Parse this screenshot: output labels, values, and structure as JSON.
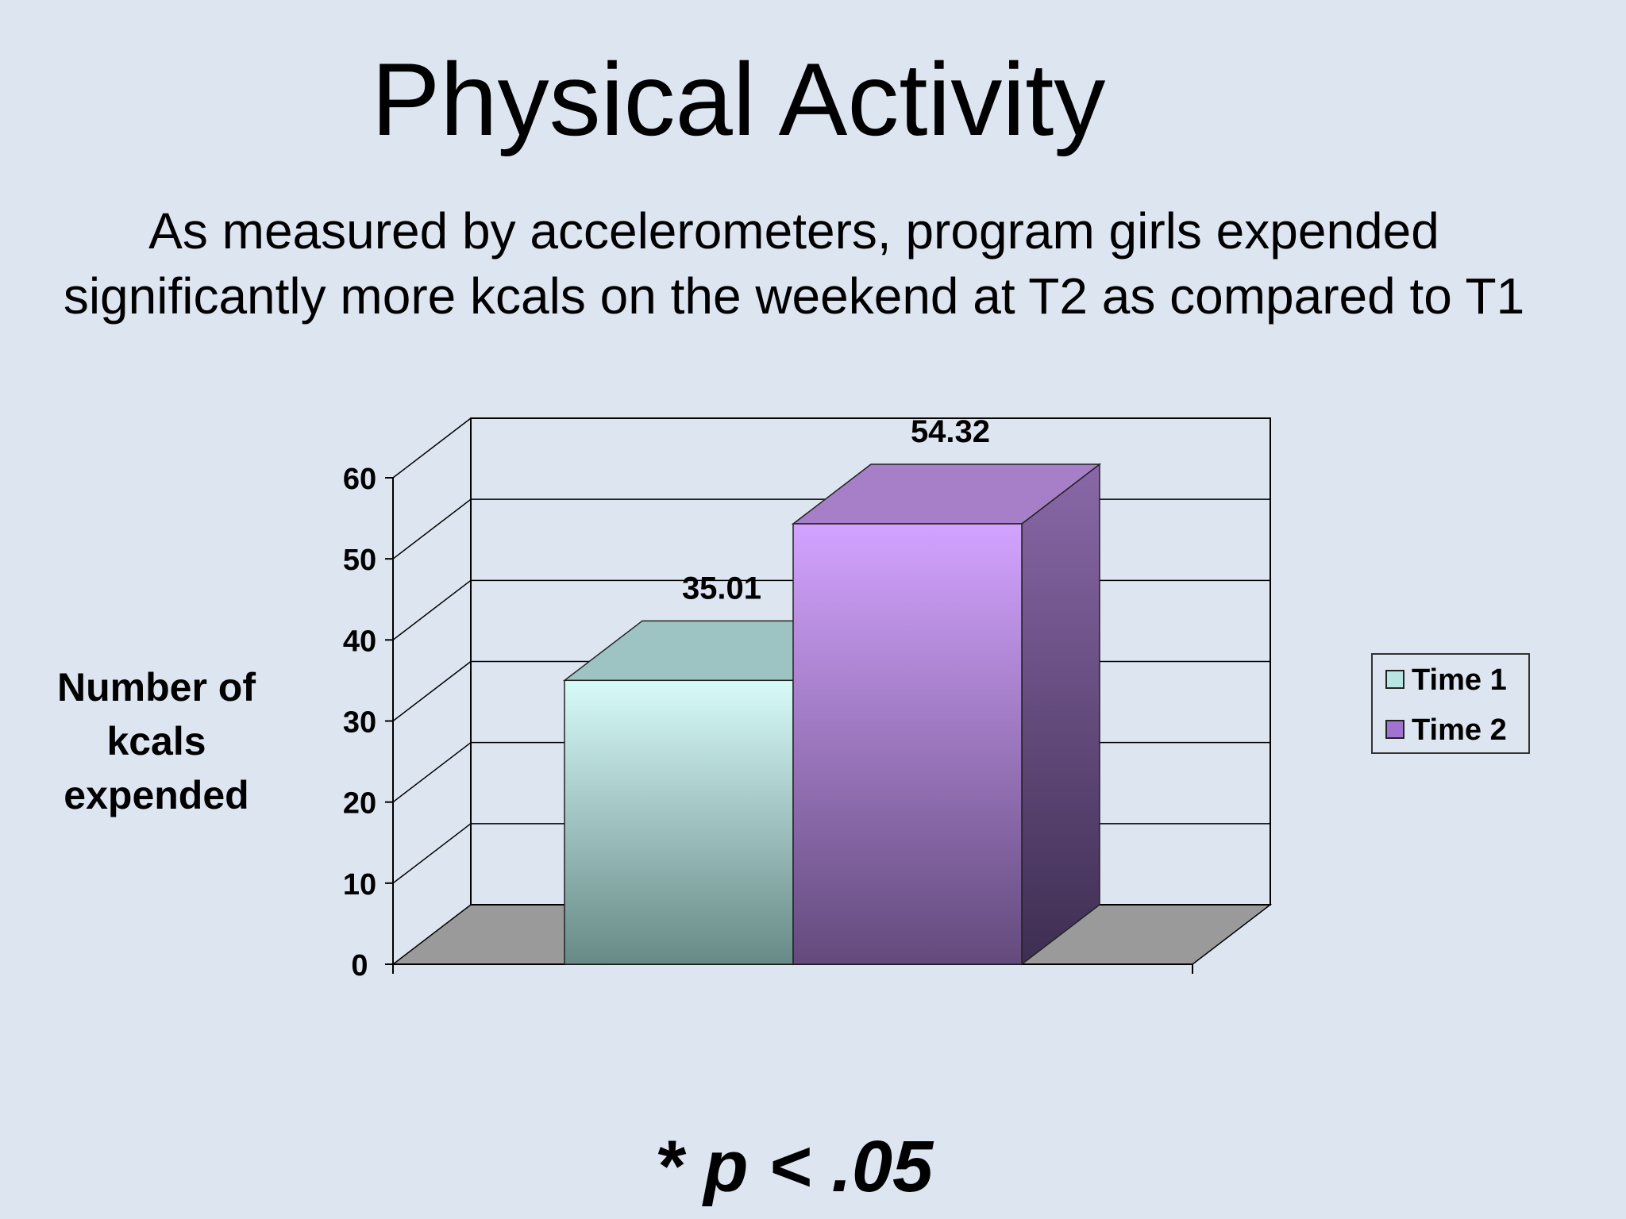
{
  "slide": {
    "title": "Physical Activity",
    "subtitle_lines": [
      "As measured by accelerometers, program girls expended",
      "significantly more kcals on the weekend at T2 as compared to T1"
    ],
    "footnote": "* p < .05"
  },
  "chart_data": {
    "type": "bar",
    "style": "3d-clustered-column",
    "title": "",
    "ylabel_lines": [
      "Number of",
      "kcals",
      "expended"
    ],
    "xlabel": "",
    "ylim": [
      0,
      60
    ],
    "yticks": [
      0,
      10,
      20,
      30,
      40,
      50,
      60
    ],
    "grid": true,
    "legend_position": "right",
    "series": [
      {
        "name": "Time 1",
        "value": 35.01,
        "data_label": "35.01",
        "color_top": "#d7fbf9",
        "color_bottom": "#678a87",
        "color_side": "#9ec1be"
      },
      {
        "name": "Time 2",
        "value": 54.32,
        "data_label": "54.32",
        "color_top": "#d3a3ff",
        "color_bottom": "#634a7c",
        "color_side": "#5a3f74"
      }
    ],
    "colors": {
      "floor": "#9a9a9a",
      "wall": "#dde5f1",
      "axis": "#000000"
    }
  }
}
